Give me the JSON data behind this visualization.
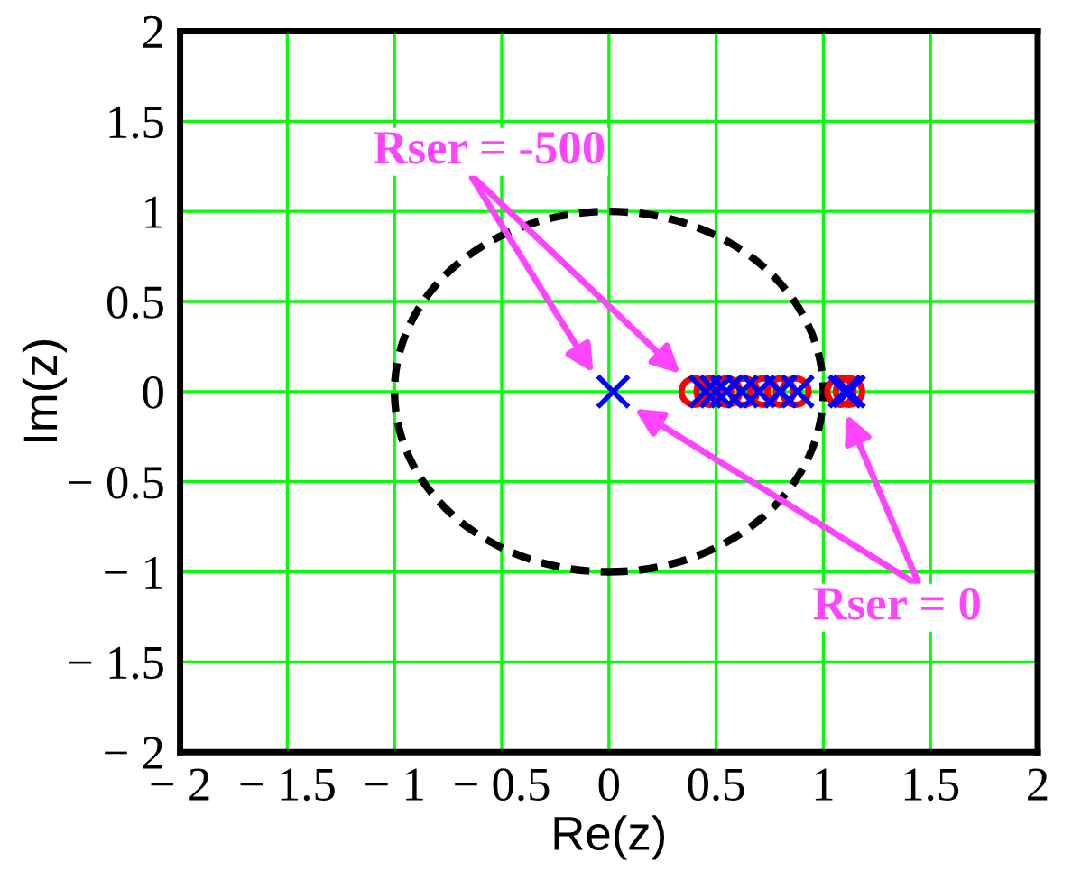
{
  "chart_data": {
    "type": "scatter",
    "xlabel": "Re(z)",
    "ylabel": "Im(z)",
    "series": [
      {
        "color": "#ff0000",
        "marker": "circle",
        "x": [
          0.4,
          0.47,
          0.55,
          0.63,
          0.72,
          0.8,
          0.87,
          1.08,
          1.12
        ],
        "values": [
          0,
          0,
          0,
          0,
          0,
          0,
          0,
          0,
          0
        ]
      },
      {
        "color": "#0000ff",
        "marker": "cross",
        "x": [
          0.02,
          0.45,
          0.5,
          0.55,
          0.62,
          0.7,
          0.8,
          0.88,
          1.1,
          1.12
        ],
        "values": [
          0,
          0,
          0,
          0,
          0,
          0,
          0,
          0,
          0,
          0
        ]
      }
    ],
    "annotations": [
      "Rser = -500",
      "Rser = 0"
    ],
    "xlim": [
      -2,
      2
    ],
    "ylim": [
      -2,
      2
    ],
    "xticks": [
      {
        "value": -2,
        "label": "− 2"
      },
      {
        "value": -1.5,
        "label": "− 1.5"
      },
      {
        "value": -1,
        "label": "− 1"
      },
      {
        "value": -0.5,
        "label": "− 0.5"
      },
      0,
      0.5,
      1,
      1.5,
      2
    ],
    "yticks": [
      {
        "value": -2,
        "label": "− 2"
      },
      {
        "value": -1.5,
        "label": "− 1.5"
      },
      {
        "value": -1,
        "label": "− 1"
      },
      {
        "value": -0.5,
        "label": "− 0.5"
      },
      0,
      0.5,
      1,
      1.5,
      2
    ],
    "grid": true
  }
}
